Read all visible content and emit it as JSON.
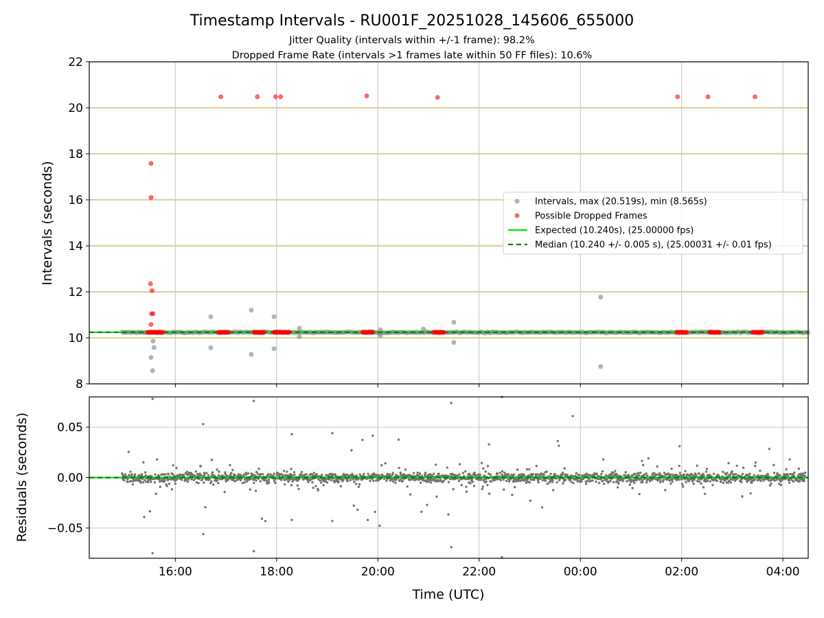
{
  "chart_data": [
    {
      "type": "scatter",
      "title": "Timestamp Intervals - RU001F_20251028_145606_655000",
      "subtitle_lines": [
        "Jitter Quality (intervals within +/-1 frame): 98.2%",
        "Dropped Frame Rate (intervals >1 frames late within 50 FF files): 10.6%"
      ],
      "xlabel": "",
      "ylabel": "Intervals (seconds)",
      "x_unit": "hours since 00:00 UTC on the first day (values above 24 are after midnight)",
      "xlim": [
        14.3,
        28.5
      ],
      "ylim": [
        8,
        22
      ],
      "yticks": [
        8,
        10,
        12,
        14,
        16,
        18,
        20,
        22
      ],
      "ytick_labels": [
        "8",
        "10",
        "12",
        "14",
        "16",
        "18",
        "20",
        "22"
      ],
      "xticks": [
        16,
        18,
        20,
        22,
        24,
        26,
        28
      ],
      "grid": true,
      "frame_gridlines_color": "#c8b45a",
      "expected_interval": 10.24,
      "median_interval": 10.24,
      "legend_position": "center-right",
      "legend": [
        {
          "label": "Intervals, max (20.519s), min (8.565s)",
          "marker": "circle",
          "color": "#808080"
        },
        {
          "label": "Possible Dropped Frames",
          "marker": "circle",
          "color": "#ff0000"
        },
        {
          "label": "Expected (10.240s), (25.00000 fps)",
          "marker": "solid-line",
          "color": "#00e000"
        },
        {
          "label": "Median (10.240 +/- 0.005 s), (25.00031 +/- 0.01 fps)",
          "marker": "dashed-line",
          "color": "#008000"
        }
      ],
      "series": [
        {
          "name": "Intervals, max (20.519s), min (8.565s)",
          "color": "#808080",
          "baseline": {
            "x_start": 14.95,
            "x_end": 28.5,
            "y": 10.24
          },
          "outliers": [
            {
              "x": 15.55,
              "y": 8.57
            },
            {
              "x": 15.52,
              "y": 9.15
            },
            {
              "x": 15.58,
              "y": 9.58
            },
            {
              "x": 15.56,
              "y": 9.86
            },
            {
              "x": 16.7,
              "y": 10.92
            },
            {
              "x": 16.7,
              "y": 9.57
            },
            {
              "x": 17.5,
              "y": 11.2
            },
            {
              "x": 17.5,
              "y": 9.28
            },
            {
              "x": 17.95,
              "y": 10.92
            },
            {
              "x": 17.95,
              "y": 9.53
            },
            {
              "x": 18.45,
              "y": 10.42
            },
            {
              "x": 18.45,
              "y": 10.05
            },
            {
              "x": 20.05,
              "y": 10.35
            },
            {
              "x": 20.05,
              "y": 10.1
            },
            {
              "x": 20.9,
              "y": 10.38
            },
            {
              "x": 21.5,
              "y": 10.68
            },
            {
              "x": 21.5,
              "y": 9.8
            },
            {
              "x": 24.4,
              "y": 11.77
            },
            {
              "x": 24.4,
              "y": 8.75
            }
          ]
        },
        {
          "name": "Possible Dropped Frames",
          "color": "#ff0000",
          "points": [
            {
              "x": 15.52,
              "y": 17.58
            },
            {
              "x": 15.52,
              "y": 16.1
            },
            {
              "x": 15.51,
              "y": 12.35
            },
            {
              "x": 15.54,
              "y": 12.05
            },
            {
              "x": 15.53,
              "y": 11.05
            },
            {
              "x": 15.56,
              "y": 11.05
            },
            {
              "x": 15.52,
              "y": 10.58
            },
            {
              "x": 16.9,
              "y": 20.48
            },
            {
              "x": 17.62,
              "y": 20.48
            },
            {
              "x": 17.98,
              "y": 20.48
            },
            {
              "x": 18.08,
              "y": 20.48
            },
            {
              "x": 19.78,
              "y": 20.52
            },
            {
              "x": 21.18,
              "y": 20.45
            },
            {
              "x": 25.92,
              "y": 20.48
            },
            {
              "x": 26.52,
              "y": 20.48
            },
            {
              "x": 27.45,
              "y": 20.48
            }
          ],
          "clusters_at_10_24": [
            {
              "x_start": 15.45,
              "x_end": 15.75
            },
            {
              "x_start": 16.85,
              "x_end": 17.05
            },
            {
              "x_start": 17.55,
              "x_end": 17.75
            },
            {
              "x_start": 17.95,
              "x_end": 18.25
            },
            {
              "x_start": 19.7,
              "x_end": 19.9
            },
            {
              "x_start": 21.1,
              "x_end": 21.3
            },
            {
              "x_start": 25.9,
              "x_end": 26.1
            },
            {
              "x_start": 26.55,
              "x_end": 26.75
            },
            {
              "x_start": 27.4,
              "x_end": 27.6
            }
          ]
        }
      ]
    },
    {
      "type": "scatter",
      "xlabel": "Time (UTC)",
      "ylabel": "Residuals (seconds)",
      "xlim": [
        14.3,
        28.5
      ],
      "ylim": [
        -0.08,
        0.08
      ],
      "yticks": [
        -0.05,
        0,
        0.05
      ],
      "ytick_labels": [
        "−0.05",
        "0.00",
        "0.05"
      ],
      "xticks": [
        16,
        18,
        20,
        22,
        24,
        26,
        28
      ],
      "xtick_labels": [
        "16:00",
        "18:00",
        "20:00",
        "22:00",
        "00:00",
        "02:00",
        "04:00"
      ],
      "grid": true,
      "series": [
        {
          "name": "",
          "color": "#737373",
          "x_range": [
            14.95,
            28.45
          ],
          "typical_spread": 0.004,
          "max_abs": 0.08,
          "sample_outliers": [
            {
              "x": 15.55,
              "y": 0.078
            },
            {
              "x": 15.55,
              "y": -0.075
            },
            {
              "x": 17.55,
              "y": 0.076
            },
            {
              "x": 17.55,
              "y": -0.073
            },
            {
              "x": 16.55,
              "y": 0.053
            },
            {
              "x": 16.55,
              "y": -0.056
            },
            {
              "x": 21.45,
              "y": 0.074
            },
            {
              "x": 21.45,
              "y": -0.069
            },
            {
              "x": 22.45,
              "y": 0.08
            },
            {
              "x": 22.45,
              "y": -0.079
            },
            {
              "x": 23.85,
              "y": 0.061
            },
            {
              "x": 19.1,
              "y": 0.044
            },
            {
              "x": 19.1,
              "y": -0.043
            },
            {
              "x": 18.3,
              "y": 0.043
            },
            {
              "x": 18.3,
              "y": -0.042
            },
            {
              "x": 19.8,
              "y": -0.042
            }
          ]
        },
        {
          "name": "",
          "type": "line",
          "color": "#00e000",
          "y": 0
        },
        {
          "name": "",
          "type": "line",
          "color": "#008000",
          "dash": true,
          "y": 0
        }
      ]
    }
  ]
}
